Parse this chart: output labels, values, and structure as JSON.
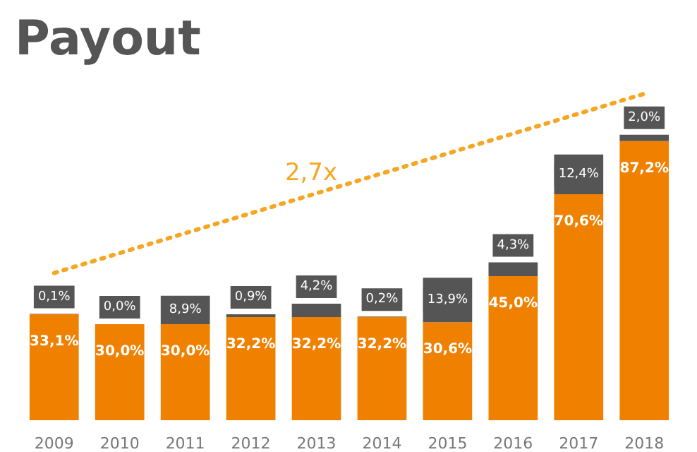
{
  "chart_data": {
    "type": "bar",
    "title": "Payout",
    "stacked": true,
    "tick_labels": "x",
    "grid": false,
    "categories": [
      "2009",
      "2010",
      "2011",
      "2012",
      "2013",
      "2014",
      "2015",
      "2016",
      "2017",
      "2018"
    ],
    "series": [
      {
        "color": "#f08100",
        "values": [
          33.1,
          30.0,
          30.0,
          32.2,
          32.2,
          32.2,
          30.6,
          45.0,
          70.6,
          87.2
        ],
        "value_labels": [
          "33,1%",
          "30,0%",
          "30,0%",
          "32,2%",
          "32,2%",
          "32,2%",
          "30,6%",
          "45,0%",
          "70,6%",
          "87,2%"
        ]
      },
      {
        "color": "#555555",
        "values": [
          0.1,
          0.0,
          8.9,
          0.9,
          4.2,
          0.2,
          13.9,
          4.3,
          12.4,
          2.0
        ],
        "value_labels": [
          "0,1%",
          "0,0%",
          "8,9%",
          "0,9%",
          "4,2%",
          "0,2%",
          "13,9%",
          "4,3%",
          "12,4%",
          "2,0%"
        ]
      },
      {
        "type": "line",
        "color": "#f5a623",
        "line_style": "dotted",
        "values": [
          46,
          null,
          null,
          null,
          null,
          null,
          null,
          null,
          null,
          102
        ]
      }
    ],
    "annotations": [
      "2,7x"
    ]
  }
}
